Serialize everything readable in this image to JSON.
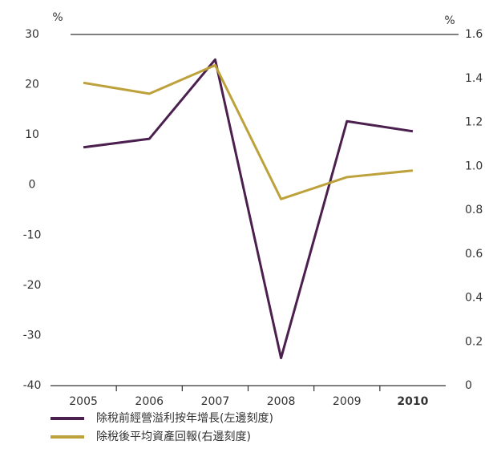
{
  "chart_data": {
    "type": "line",
    "categories": [
      "2005",
      "2006",
      "2007",
      "2008",
      "2009",
      "2010"
    ],
    "y_unit": "%",
    "y2_unit": "%",
    "ylim": [
      -40,
      30
    ],
    "yticks": [
      -40,
      -30,
      -20,
      -10,
      0,
      10,
      20,
      30
    ],
    "y2lim": [
      0,
      1.6
    ],
    "y2ticks": [
      0,
      0.2,
      0.4,
      0.6,
      0.8,
      {
        "value": 1,
        "label": "1.0"
      },
      1.2,
      1.4,
      1.6
    ],
    "series": [
      {
        "name": "除稅前經營溢利按年增長(左邊刻度)",
        "color": "#4b1f4e",
        "values": [
          7.5,
          9.2,
          25,
          -34.5,
          12.7,
          10.7
        ]
      },
      {
        "name": "除稅後平均資產回報(右邊刻度)",
        "color": "#bda13a",
        "axis": "y2",
        "values": [
          1.38,
          1.33,
          1.46,
          0.85,
          0.95,
          0.98
        ]
      }
    ]
  }
}
